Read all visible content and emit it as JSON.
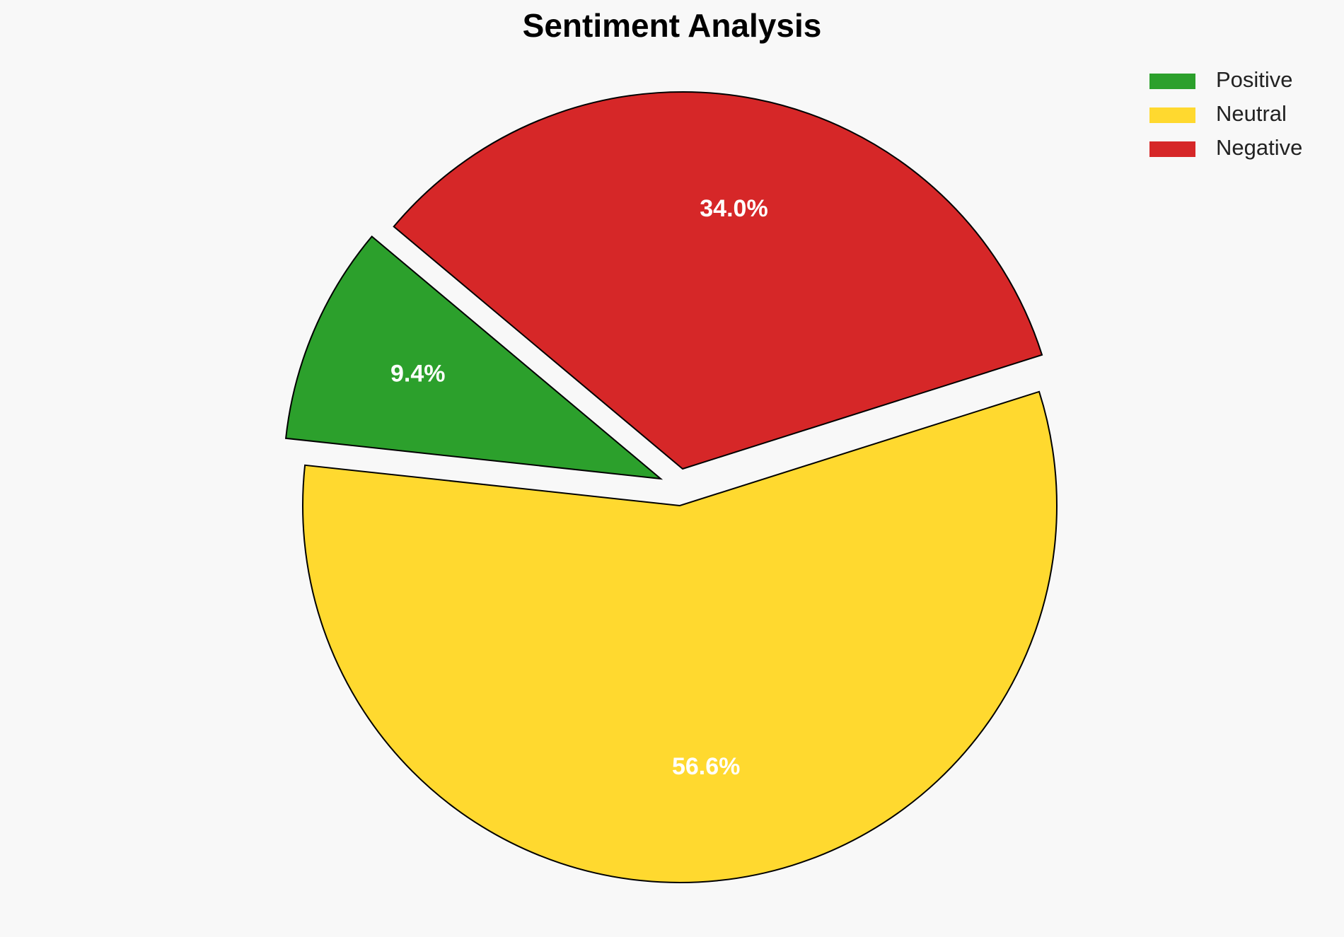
{
  "chart_data": {
    "type": "pie",
    "title": "Sentiment Analysis",
    "categories": [
      "Positive",
      "Neutral",
      "Negative"
    ],
    "values": [
      9.4,
      56.6,
      34.0
    ],
    "value_labels": [
      "9.4%",
      "56.6%",
      "34.0%"
    ],
    "colors": [
      "#2ca02c",
      "#ffd92f",
      "#d62728"
    ],
    "startangle": 140,
    "legend": "upper right"
  }
}
